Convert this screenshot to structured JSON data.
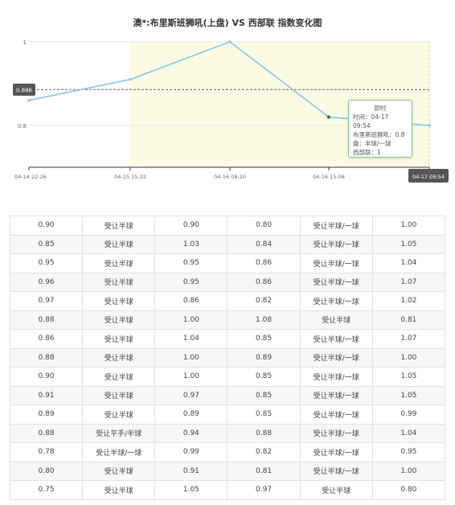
{
  "chart": {
    "title": "澳*:布里斯班狮吼(上盘) VS 西部联 指数变化图",
    "y_ticks": [
      "1",
      "0.8"
    ],
    "y_marker": "0.886",
    "x_ticks": [
      "04-14 22:26",
      "04-15 15:22",
      "04-16 08:20",
      "04-16 15:08",
      "04-17 09:54"
    ],
    "tooltip": {
      "title": "即时",
      "time": "时间：04-17 09:54",
      "home": "布里斯班狮吼：0.8",
      "line": "盘：半球/一球",
      "away": "西部联：1"
    }
  },
  "chart_data": {
    "type": "line",
    "title": "澳*:布里斯班狮吼(上盘) VS 西部联 指数变化图",
    "xlabel": "",
    "ylabel": "",
    "x": [
      "04-14 22:26",
      "04-15 15:22",
      "04-16 08:20",
      "04-16 15:08",
      "04-17 09:54"
    ],
    "values": [
      0.86,
      0.91,
      1.0,
      0.82,
      0.8
    ],
    "ylim": [
      0.7,
      1.0
    ],
    "reference_line": 0.886,
    "highlight_range": [
      "04-15 15:22",
      "04-17 09:54"
    ],
    "grid": true,
    "line_color": "#87c3ea",
    "highlight_color": "#fcfce5"
  },
  "table": {
    "rows": [
      [
        "0.90",
        "受让半球",
        "0.90",
        "0.80",
        "受让半球/一球",
        "1.00"
      ],
      [
        "0.85",
        "受让半球",
        "1.03",
        "0.84",
        "受让半球/一球",
        "1.05"
      ],
      [
        "0.95",
        "受让半球",
        "0.95",
        "0.86",
        "受让半球/一球",
        "1.04"
      ],
      [
        "0.96",
        "受让半球",
        "0.95",
        "0.86",
        "受让半球/一球",
        "1.07"
      ],
      [
        "0.97",
        "受让半球",
        "0.86",
        "0.82",
        "受让半球/一球",
        "1.02"
      ],
      [
        "0.88",
        "受让半球",
        "1.00",
        "1.08",
        "受让半球",
        "0.81"
      ],
      [
        "0.86",
        "受让半球",
        "1.04",
        "0.85",
        "受让半球/一球",
        "1.07"
      ],
      [
        "0.88",
        "受让半球",
        "1.00",
        "0.89",
        "受让半球/一球",
        "1.00"
      ],
      [
        "0.90",
        "受让半球",
        "1.00",
        "0.85",
        "受让半球/一球",
        "1.05"
      ],
      [
        "0.91",
        "受让半球",
        "0.97",
        "0.85",
        "受让半球/一球",
        "1.05"
      ],
      [
        "0.89",
        "受让半球",
        "0.89",
        "0.85",
        "受让半球/一球",
        "0.99"
      ],
      [
        "0.88",
        "受让平手/半球",
        "0.94",
        "0.88",
        "受让半球/一球",
        "1.04"
      ],
      [
        "0.78",
        "受让半球/一球",
        "0.99",
        "0.82",
        "受让半球/一球",
        "0.95"
      ],
      [
        "0.80",
        "受让半球",
        "0.91",
        "0.81",
        "受让半球/一球",
        "1.00"
      ],
      [
        "0.75",
        "受让半球",
        "1.05",
        "0.97",
        "受让半球",
        "0.80"
      ]
    ]
  }
}
